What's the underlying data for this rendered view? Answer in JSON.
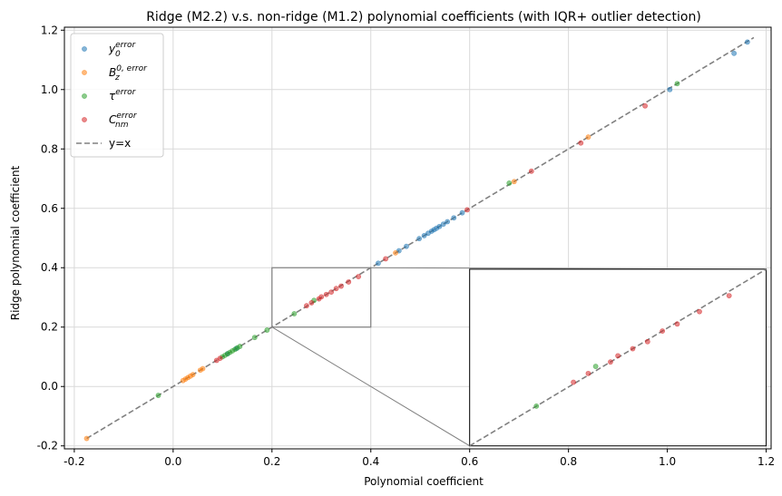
{
  "chart_data": {
    "type": "scatter",
    "title": "Ridge (M2.2) v.s. non-ridge (M1.2) polynomial coefficients (with IQR+ outlier detection)",
    "xlabel": "Polynomial coefficient",
    "ylabel": "Ridge polynomial coefficient",
    "xlim": [
      -0.22,
      1.21
    ],
    "ylim": [
      -0.21,
      1.21
    ],
    "xticks": [
      "-0.2",
      "0.0",
      "0.2",
      "0.4",
      "0.6",
      "0.8",
      "1.0",
      "1.2"
    ],
    "yticks": [
      "-0.2",
      "0.0",
      "0.2",
      "0.4",
      "0.6",
      "0.8",
      "1.0",
      "1.2"
    ],
    "grid": true,
    "legend_position": "top-left",
    "series": [
      {
        "name": "y_0^error",
        "color": "#1f77b4",
        "x": [
          0.415,
          0.457,
          0.472,
          0.498,
          0.508,
          0.516,
          0.523,
          0.528,
          0.533,
          0.539,
          0.547,
          0.555,
          0.568,
          0.585,
          1.005,
          1.135,
          1.162,
          0.128,
          0.11
        ],
        "y": [
          0.415,
          0.457,
          0.472,
          0.498,
          0.508,
          0.516,
          0.523,
          0.528,
          0.533,
          0.539,
          0.547,
          0.555,
          0.568,
          0.585,
          1.0,
          1.122,
          1.16,
          0.128,
          0.11
        ]
      },
      {
        "name": "B_z^{0,error}",
        "color": "#ff7f0e",
        "x": [
          -0.175,
          0.02,
          0.025,
          0.03,
          0.035,
          0.04,
          0.055,
          0.06,
          0.45,
          0.69,
          0.84
        ],
        "y": [
          -0.175,
          0.02,
          0.025,
          0.03,
          0.035,
          0.04,
          0.055,
          0.06,
          0.45,
          0.69,
          0.84
        ]
      },
      {
        "name": "τ^error",
        "color": "#2ca02c",
        "x": [
          -0.03,
          0.1,
          0.105,
          0.11,
          0.115,
          0.12,
          0.125,
          0.13,
          0.135,
          0.165,
          0.19,
          0.245,
          0.68,
          1.02,
          0.285
        ],
        "y": [
          -0.03,
          0.1,
          0.105,
          0.11,
          0.115,
          0.12,
          0.125,
          0.13,
          0.135,
          0.165,
          0.19,
          0.245,
          0.685,
          1.02,
          0.29
        ]
      },
      {
        "name": "C_nm^error",
        "color": "#d62728",
        "x": [
          0.088,
          0.095,
          0.27,
          0.28,
          0.295,
          0.3,
          0.31,
          0.32,
          0.33,
          0.34,
          0.355,
          0.375,
          0.43,
          0.595,
          0.725,
          0.825,
          0.955
        ],
        "y": [
          0.088,
          0.095,
          0.272,
          0.282,
          0.295,
          0.302,
          0.31,
          0.318,
          0.33,
          0.338,
          0.352,
          0.37,
          0.43,
          0.595,
          0.725,
          0.82,
          0.945
        ]
      }
    ],
    "reference_line": {
      "name": "y=x",
      "x": [
        -0.175,
        1.175
      ],
      "y": [
        -0.175,
        1.175
      ],
      "style": "dashed",
      "color": "#808080"
    },
    "inset": {
      "zoom_x": [
        0.2,
        0.4
      ],
      "zoom_y": [
        0.2,
        0.4
      ],
      "placement_x": [
        0.6,
        1.2
      ],
      "placement_y": [
        -0.2,
        0.395
      ]
    },
    "legend": [
      {
        "label": "y",
        "sub": "0",
        "sup": "error",
        "color": "#1f77b4",
        "kind": "marker"
      },
      {
        "label": "B",
        "sub": "z",
        "sup": "0, error",
        "color": "#ff7f0e",
        "kind": "marker"
      },
      {
        "label": "τ",
        "sub": "",
        "sup": "error",
        "color": "#2ca02c",
        "kind": "marker"
      },
      {
        "label": "C",
        "sub": "nm",
        "sup": "error",
        "color": "#d62728",
        "kind": "marker"
      },
      {
        "label": "y=x",
        "sub": "",
        "sup": "",
        "color": "#808080",
        "kind": "dashed"
      }
    ]
  }
}
